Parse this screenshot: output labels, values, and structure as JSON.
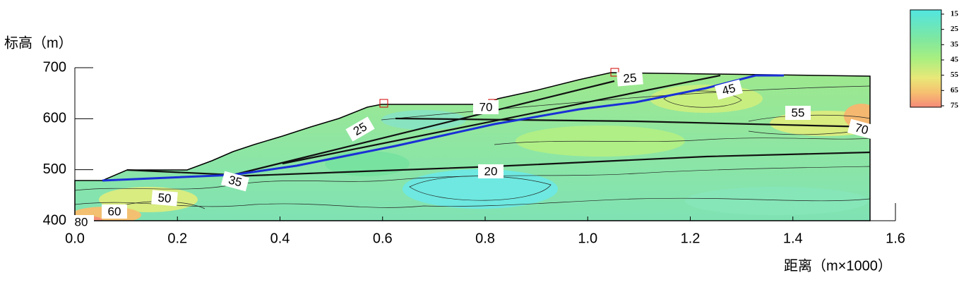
{
  "chart_data": {
    "type": "contour",
    "ylabel": "标高（m）",
    "xlabel": "距离（m×1000）",
    "xlim": [
      0,
      1.6
    ],
    "ylim": [
      400,
      700
    ],
    "xticks": [
      {
        "value": 0,
        "label": "0.0"
      },
      {
        "value": 0.2,
        "label": "0.2"
      },
      {
        "value": 0.4,
        "label": "0.4"
      },
      {
        "value": 0.6,
        "label": "0.6"
      },
      {
        "value": 0.8,
        "label": "0.8"
      },
      {
        "value": 1.0,
        "label": "1.0"
      },
      {
        "value": 1.2,
        "label": "1.2"
      },
      {
        "value": 1.4,
        "label": "1.4"
      },
      {
        "value": 1.6,
        "label": "1.6"
      }
    ],
    "yticks": [
      400,
      500,
      600,
      700
    ],
    "colorbar_ticks": [
      15,
      25,
      35,
      45,
      55,
      65,
      75
    ],
    "contour_labels": [
      25,
      45,
      55,
      70,
      20,
      35,
      50,
      60,
      80,
      25,
      70
    ]
  }
}
